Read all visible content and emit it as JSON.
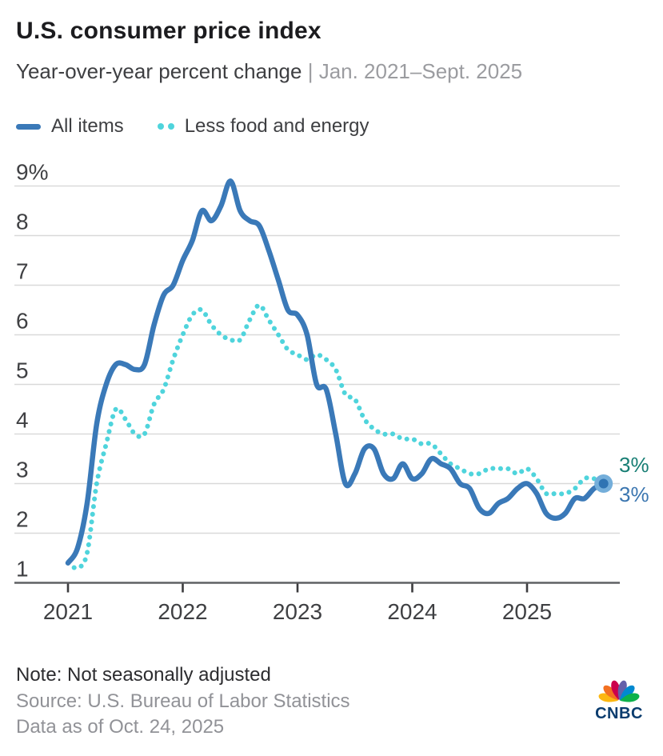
{
  "header": {
    "title": "U.S. consumer price index",
    "subtitle": "Year-over-year percent change ",
    "subtitle_separator": "| ",
    "subtitle_period": "Jan. 2021–Sept. 2025"
  },
  "legend": {
    "items": [
      {
        "label": "All items",
        "color": "#3A79B8",
        "style": "solid"
      },
      {
        "label": "Less food and energy",
        "color": "#4FD4DC",
        "style": "dotted"
      }
    ]
  },
  "chart_data": {
    "type": "line",
    "title": "U.S. consumer price index",
    "xlabel": "",
    "ylabel": "Year-over-year percent change (%)",
    "frequency": "monthly",
    "x_range": "Jan. 2021 – Sept. 2025",
    "ylim": [
      1,
      9
    ],
    "grid": true,
    "legend_position": "top-left",
    "y_tick_values": [
      9,
      8,
      7,
      6,
      5,
      4,
      3,
      2,
      1
    ],
    "y_tick_labels": [
      "9%",
      "8",
      "7",
      "6",
      "5",
      "4",
      "3",
      "2",
      "1"
    ],
    "x_tick_labels": [
      "2021",
      "2022",
      "2023",
      "2024",
      "2025"
    ],
    "x_tick_month_index": [
      0,
      12,
      24,
      36,
      48
    ],
    "series": [
      {
        "name": "All items",
        "color": "#3A79B8",
        "line_style": "solid",
        "end_label": "3%",
        "end_label_color": "#3B76B0",
        "values": [
          1.4,
          1.7,
          2.6,
          4.2,
          5.0,
          5.4,
          5.4,
          5.3,
          5.4,
          6.2,
          6.8,
          7.0,
          7.5,
          7.9,
          8.5,
          8.3,
          8.6,
          9.1,
          8.5,
          8.3,
          8.2,
          7.7,
          7.1,
          6.5,
          6.4,
          6.0,
          5.0,
          4.9,
          4.0,
          3.0,
          3.2,
          3.7,
          3.7,
          3.2,
          3.1,
          3.4,
          3.1,
          3.2,
          3.5,
          3.4,
          3.3,
          3.0,
          2.9,
          2.5,
          2.4,
          2.6,
          2.7,
          2.9,
          3.0,
          2.8,
          2.4,
          2.3,
          2.4,
          2.7,
          2.7,
          2.9,
          3.0
        ]
      },
      {
        "name": "Less food and energy",
        "color": "#4FD4DC",
        "line_style": "dotted",
        "end_label": "3%",
        "end_label_color": "#177E74",
        "values": [
          1.4,
          1.3,
          1.6,
          3.0,
          3.8,
          4.5,
          4.3,
          4.0,
          4.0,
          4.6,
          4.9,
          5.5,
          6.0,
          6.4,
          6.5,
          6.2,
          6.0,
          5.9,
          5.9,
          6.3,
          6.6,
          6.3,
          6.0,
          5.7,
          5.6,
          5.5,
          5.6,
          5.5,
          5.3,
          4.8,
          4.7,
          4.3,
          4.1,
          4.0,
          4.0,
          3.9,
          3.9,
          3.8,
          3.8,
          3.6,
          3.4,
          3.3,
          3.2,
          3.2,
          3.3,
          3.3,
          3.3,
          3.2,
          3.3,
          3.1,
          2.8,
          2.8,
          2.8,
          2.9,
          3.1,
          3.1,
          3.0
        ]
      }
    ]
  },
  "footer": {
    "note": "Note: Not seasonally adjusted",
    "source": "Source: U.S. Bureau of Labor Statistics",
    "data_as_of": "Data as of Oct. 24, 2025",
    "logo_text": "CNBC",
    "logo_icon": "nbc-peacock-icon",
    "logo_wordmark_color": "#0A3C6E",
    "logo_feather_colors": [
      "#FCB711",
      "#F37021",
      "#CC004C",
      "#6460AA",
      "#0089D0",
      "#0DB14B"
    ]
  },
  "colors": {
    "all_items_line": "#3A79B8",
    "core_line": "#4FD4DC",
    "gridline": "#d9d9d9",
    "axis": "#5f6063",
    "title_text": "#1c1c1f",
    "subtitle_muted": "#9b9ca0",
    "footer_muted": "#919297"
  }
}
